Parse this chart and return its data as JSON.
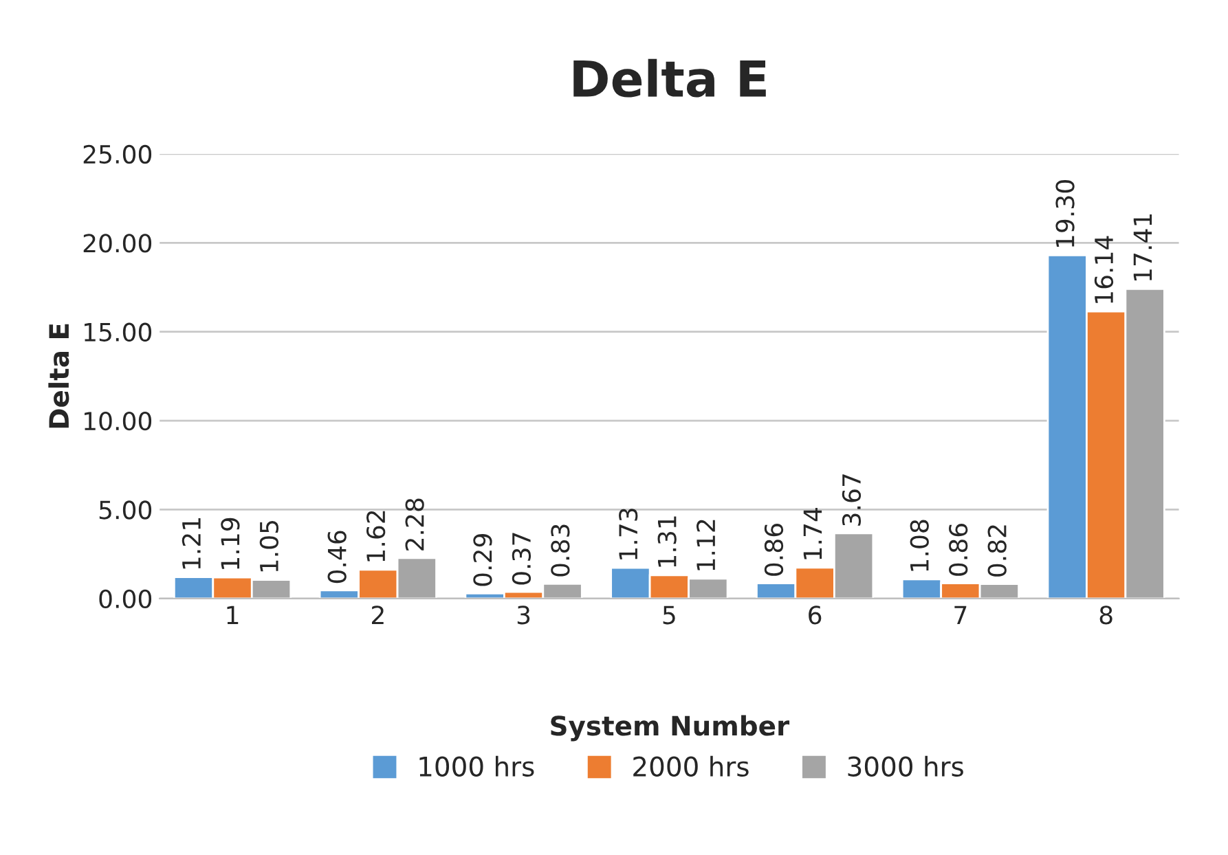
{
  "chart_data": {
    "type": "bar",
    "title": "Delta E",
    "xlabel": "System Number",
    "ylabel": "Delta E",
    "categories": [
      "1",
      "2",
      "3",
      "5",
      "6",
      "7",
      "8"
    ],
    "series": [
      {
        "name": "1000 hrs",
        "color": "#5b9bd5",
        "values": [
          1.21,
          0.46,
          0.29,
          1.73,
          0.86,
          1.08,
          19.3
        ],
        "value_labels": [
          "1.21",
          "0.46",
          "0.29",
          "1.73",
          "0.86",
          "1.08",
          "19.30"
        ]
      },
      {
        "name": "2000 hrs",
        "color": "#ed7d31",
        "values": [
          1.19,
          1.62,
          0.37,
          1.31,
          1.74,
          0.86,
          16.14
        ],
        "value_labels": [
          "1.19",
          "1.62",
          "0.37",
          "1.31",
          "1.74",
          "0.86",
          "16.14"
        ]
      },
      {
        "name": "3000 hrs",
        "color": "#a5a5a5",
        "values": [
          1.05,
          2.28,
          0.83,
          1.12,
          3.67,
          0.82,
          17.41
        ],
        "value_labels": [
          "1.05",
          "2.28",
          "0.83",
          "1.12",
          "3.67",
          "0.82",
          "17.41"
        ]
      }
    ],
    "ylim": [
      0,
      25
    ],
    "yticks": [
      {
        "value": 0,
        "label": "0.00"
      },
      {
        "value": 5,
        "label": "5.00"
      },
      {
        "value": 10,
        "label": "10.00"
      },
      {
        "value": 15,
        "label": "15.00"
      },
      {
        "value": 20,
        "label": "20.00"
      },
      {
        "value": 25,
        "label": "25.00"
      }
    ],
    "grid": "y",
    "legend": "bottom"
  }
}
